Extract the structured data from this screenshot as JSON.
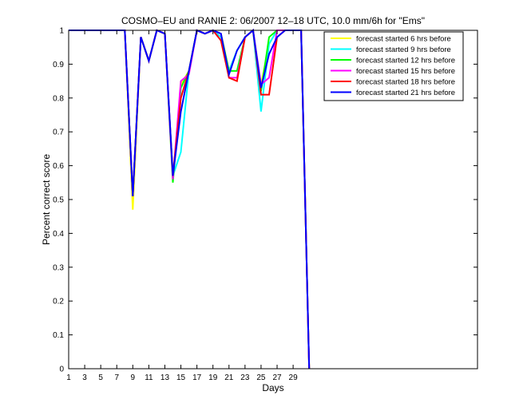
{
  "chart_data": {
    "type": "line",
    "title": "COSMO–EU and RANIE 2: 06/2007 12–18 UTC, 10.0 mm/6h for \"Ems\"",
    "xlabel": "Days",
    "ylabel": "Percent correct score",
    "xlim": [
      1,
      52
    ],
    "ylim": [
      0,
      1
    ],
    "xticks": [
      1,
      3,
      5,
      7,
      9,
      11,
      13,
      15,
      17,
      19,
      21,
      23,
      25,
      27,
      29
    ],
    "yticks": [
      0,
      0.1,
      0.2,
      0.3,
      0.4,
      0.5,
      0.6,
      0.7,
      0.8,
      0.9,
      1
    ],
    "grid": false,
    "legend_position": "top-right",
    "x": [
      1,
      2,
      3,
      4,
      5,
      6,
      7,
      8,
      9,
      10,
      11,
      12,
      13,
      14,
      15,
      16,
      17,
      18,
      19,
      20,
      21,
      22,
      23,
      24,
      25,
      26,
      27,
      28,
      29,
      30,
      31
    ],
    "series": [
      {
        "name": "forecast started 6 hrs before",
        "color": "#ffff00",
        "values": [
          1,
          1,
          1,
          1,
          1,
          1,
          1,
          1,
          0.47,
          0.98,
          0.91,
          1,
          0.99,
          0.56,
          0.84,
          0.88,
          1,
          0.99,
          1,
          0.99,
          0.88,
          0.94,
          0.98,
          1,
          0.84,
          0.96,
          1,
          1,
          1,
          1,
          0
        ]
      },
      {
        "name": "forecast started 9 hrs before",
        "color": "#00ffff",
        "values": [
          1,
          1,
          1,
          1,
          1,
          1,
          1,
          1,
          0.51,
          0.98,
          0.91,
          1,
          0.99,
          0.57,
          0.64,
          0.88,
          1,
          0.99,
          1,
          0.98,
          0.88,
          0.94,
          0.98,
          1,
          0.76,
          0.96,
          1,
          1,
          1,
          1,
          0
        ]
      },
      {
        "name": "forecast started 12 hrs before",
        "color": "#00ff00",
        "values": [
          1,
          1,
          1,
          1,
          1,
          1,
          1,
          1,
          0.51,
          0.98,
          0.91,
          1,
          0.99,
          0.55,
          0.83,
          0.88,
          1,
          0.99,
          1,
          0.99,
          0.88,
          0.88,
          0.98,
          1,
          0.82,
          0.98,
          1,
          1,
          1,
          1,
          0
        ]
      },
      {
        "name": "forecast started 15 hrs before",
        "color": "#ff00ff",
        "values": [
          1,
          1,
          1,
          1,
          1,
          1,
          1,
          1,
          0.51,
          0.98,
          0.91,
          1,
          0.99,
          0.56,
          0.85,
          0.87,
          1,
          0.99,
          1,
          0.99,
          0.86,
          0.86,
          0.98,
          1,
          0.84,
          0.86,
          1,
          1,
          1,
          1,
          0
        ]
      },
      {
        "name": "forecast started 18 hrs before",
        "color": "#ff0000",
        "values": [
          1,
          1,
          1,
          1,
          1,
          1,
          1,
          1,
          0.51,
          0.98,
          0.91,
          1,
          0.99,
          0.57,
          0.8,
          0.88,
          1,
          0.99,
          1,
          0.97,
          0.86,
          0.85,
          0.98,
          1,
          0.81,
          0.81,
          0.98,
          1,
          1,
          1,
          0
        ]
      },
      {
        "name": "forecast started 21 hrs before",
        "color": "#0000ff",
        "values": [
          1,
          1,
          1,
          1,
          1,
          1,
          1,
          1,
          0.51,
          0.98,
          0.91,
          1,
          0.99,
          0.57,
          0.76,
          0.88,
          1,
          0.99,
          1,
          0.99,
          0.87,
          0.94,
          0.98,
          1,
          0.83,
          0.93,
          0.98,
          1,
          1,
          1,
          0
        ]
      }
    ]
  }
}
